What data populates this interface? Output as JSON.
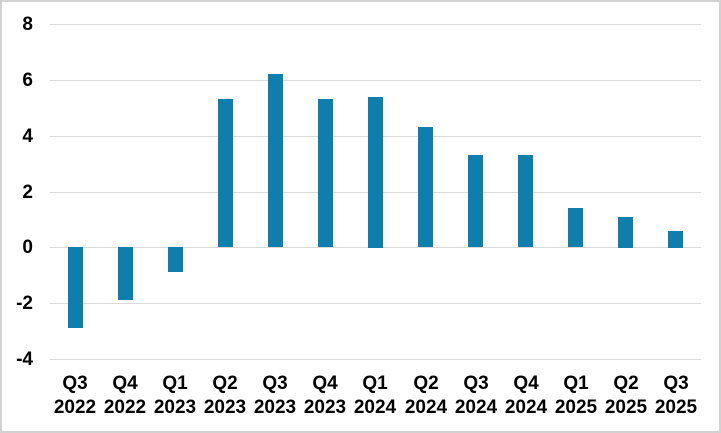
{
  "chart_data": {
    "type": "bar",
    "title": "",
    "xlabel": "",
    "ylabel": "",
    "categories": [
      "Q3 2022",
      "Q4 2022",
      "Q1 2023",
      "Q2 2023",
      "Q3 2023",
      "Q4 2023",
      "Q1 2024",
      "Q2 2024",
      "Q3 2024",
      "Q4 2024",
      "Q1 2025",
      "Q2 2025",
      "Q3 2025"
    ],
    "values": [
      -2.9,
      -1.9,
      -0.9,
      5.3,
      6.2,
      5.3,
      5.4,
      4.3,
      3.3,
      3.3,
      1.4,
      1.1,
      0.6
    ],
    "ylim": [
      -4,
      8
    ],
    "yticks": [
      8,
      6,
      4,
      2,
      0,
      -2,
      -4
    ],
    "grid": true,
    "legend_position": "none",
    "bar_color": "#0e7fac",
    "gridline_color": "#d9d9d9",
    "border_color": "#d2d2d2",
    "label_color": "#000000"
  }
}
